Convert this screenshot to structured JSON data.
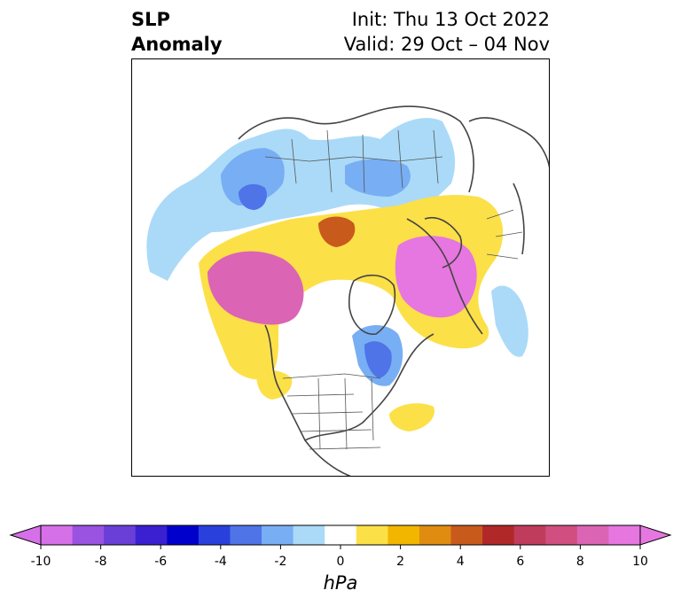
{
  "title": {
    "left_line1": "SLP",
    "left_line2": "Anomaly",
    "right_line1": "Init: Thu 13 Oct 2022",
    "right_line2": "Valid: 29 Oct – 04 Nov"
  },
  "colorbar": {
    "units": "hPa",
    "tick_labels": [
      "-10",
      "-8",
      "-6",
      "-4",
      "-2",
      "0",
      "2",
      "4",
      "6",
      "8",
      "10"
    ],
    "tick_values": [
      -10,
      -8,
      -6,
      -4,
      -2,
      0,
      2,
      4,
      6,
      8,
      10
    ],
    "colors": [
      "#d670e8",
      "#9a52e0",
      "#6a3fd8",
      "#3a20d0",
      "#0000cc",
      "#2a40dc",
      "#4e74e8",
      "#78aef4",
      "#aadaf8",
      "#ffffff",
      "#fce048",
      "#f2b600",
      "#e08c10",
      "#c85a1c",
      "#b02828",
      "#c03c5c",
      "#d04f80",
      "#dc64b4",
      "#e676e0"
    ],
    "extend_colors": {
      "low": "#d670e8",
      "high": "#e676e0"
    }
  },
  "map": {
    "projection": "north-polar-stereographic",
    "anomaly_colors": {
      "neg_light": "#aadaf8",
      "neg_mid": "#78aef4",
      "neg_dark": "#4e74e8",
      "pos_1": "#fce048",
      "pos_2": "#f2b600",
      "pos_3": "#e08c10",
      "pos_4": "#c85a1c",
      "pos_5": "#b02828",
      "pos_6": "#c03c5c",
      "pos_7": "#d04f80",
      "pos_8": "#dc64b4",
      "pos_9": "#e676e0"
    }
  }
}
